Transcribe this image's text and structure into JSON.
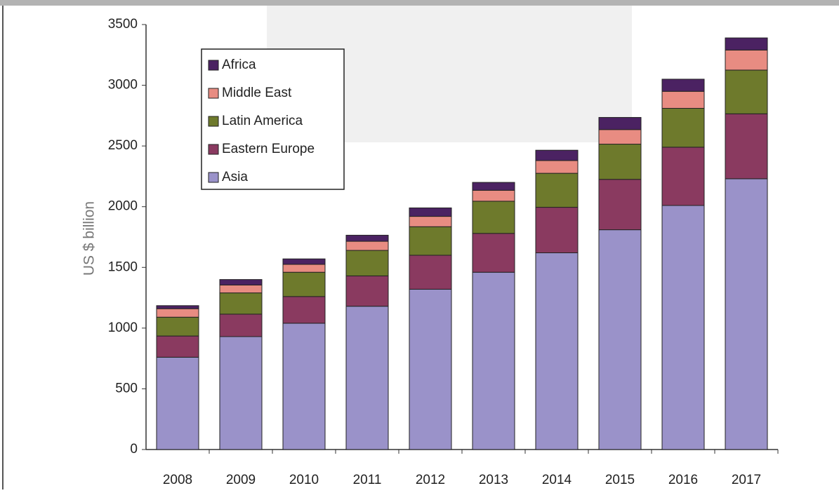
{
  "chart_data": {
    "type": "stacked_bar",
    "y_label": "US $ billion",
    "categories": [
      "2008",
      "2009",
      "2010",
      "2011",
      "2012",
      "2013",
      "2014",
      "2015",
      "2016",
      "2017"
    ],
    "series": [
      {
        "name": "Asia",
        "color": "#9a92c9",
        "values": [
          760,
          930,
          1040,
          1180,
          1320,
          1460,
          1620,
          1810,
          2010,
          2230
        ]
      },
      {
        "name": "Eastern Europe",
        "color": "#8a3a60",
        "values": [
          175,
          185,
          220,
          250,
          280,
          320,
          375,
          415,
          480,
          535
        ]
      },
      {
        "name": "Latin America",
        "color": "#6e7a2c",
        "values": [
          155,
          175,
          200,
          210,
          235,
          265,
          280,
          290,
          320,
          360
        ]
      },
      {
        "name": "Middle East",
        "color": "#e88c82",
        "values": [
          70,
          65,
          65,
          75,
          85,
          90,
          105,
          120,
          140,
          165
        ]
      },
      {
        "name": "Africa",
        "color": "#4b2262",
        "values": [
          25,
          45,
          45,
          50,
          70,
          65,
          85,
          100,
          100,
          100
        ]
      }
    ],
    "ylim": [
      0,
      3500
    ],
    "yticks": [
      0,
      500,
      1000,
      1500,
      2000,
      2500,
      3000,
      3500
    ]
  }
}
